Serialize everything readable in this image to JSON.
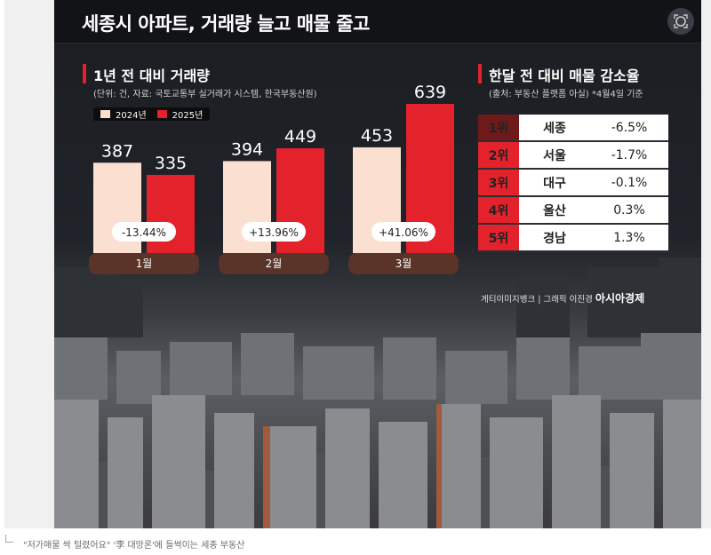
{
  "title": "세종시 아파트, 거래량 늘고 매물 줄고",
  "left_section": {
    "title": "1년 전 대비 거래량",
    "subtitle": "(단위: 건, 자료: 국토교통부 실거래가 시스템, 한국부동산원)"
  },
  "right_section": {
    "title": "한달 전 대비 매물 감소율",
    "subtitle": "(출처: 부동산 플랫폼 아실) *4월4일 기준",
    "rows": [
      {
        "rank": "1위",
        "region": "세종",
        "pct": "-6.5%",
        "color": "#6f1a1a"
      },
      {
        "rank": "2위",
        "region": "서울",
        "pct": "-1.7%",
        "color": "#e3222b"
      },
      {
        "rank": "3위",
        "region": "대구",
        "pct": "-0.1%",
        "color": "#e3222b"
      },
      {
        "rank": "4위",
        "region": "울산",
        "pct": "0.3%",
        "color": "#e3222b"
      },
      {
        "rank": "5위",
        "region": "경남",
        "pct": "1.3%",
        "color": "#e3222b"
      }
    ]
  },
  "chart_data": {
    "type": "bar",
    "categories": [
      "1월",
      "2월",
      "3월"
    ],
    "series": [
      {
        "name": "2024년",
        "values": [
          387,
          394,
          453
        ],
        "color": "#fbe0d2"
      },
      {
        "name": "2025년",
        "values": [
          335,
          449,
          639
        ],
        "color": "#e3222b"
      }
    ],
    "changes": [
      "-13.44%",
      "+13.96%",
      "+41.06%"
    ],
    "legend_position": "top-left",
    "grid": false
  },
  "credit": {
    "text": "게티이미지뱅크 | 그래픽 이진경",
    "brand": "아시아경제"
  },
  "caption": "\"저가매물 싹 털렸어요\" '李 대망론'에 들썩이는 세종 부동산"
}
